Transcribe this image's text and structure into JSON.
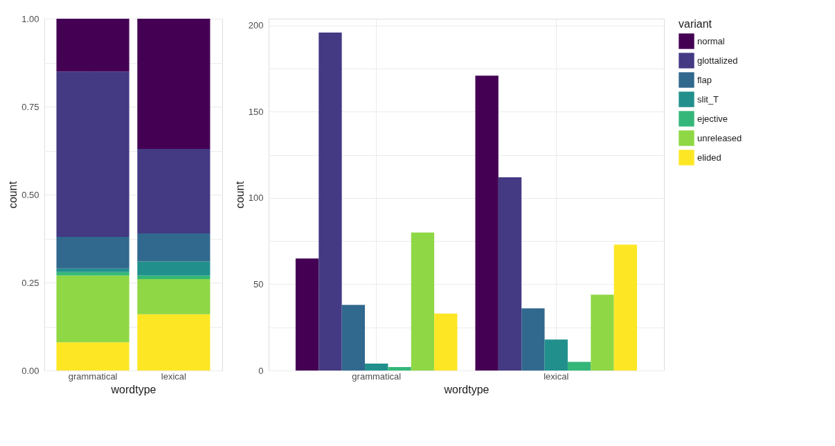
{
  "chart_data": [
    {
      "type": "bar",
      "stacked": true,
      "categories": [
        "grammatical",
        "lexical"
      ],
      "xlabel": "wordtype",
      "ylabel": "count",
      "ylim": [
        0,
        1
      ],
      "yticks": [
        {
          "value": 0,
          "label": "0.00"
        },
        {
          "value": 0.125,
          "label": null
        },
        {
          "value": 0.25,
          "label": "0.25"
        },
        {
          "value": 0.375,
          "label": null
        },
        {
          "value": 0.5,
          "label": "0.50"
        },
        {
          "value": 0.625,
          "label": null
        },
        {
          "value": 0.75,
          "label": "0.75"
        },
        {
          "value": 0.875,
          "label": null
        },
        {
          "value": 1,
          "label": "1.00"
        }
      ],
      "grid": true,
      "legend": "right",
      "series": [
        {
          "name": "elided",
          "color": "#fde725",
          "values": [
            0.08,
            0.16
          ]
        },
        {
          "name": "unreleased",
          "color": "#8fd744",
          "values": [
            0.19,
            0.1
          ]
        },
        {
          "name": "ejective",
          "color": "#35b779",
          "values": [
            0.01,
            0.01
          ]
        },
        {
          "name": "slit_T",
          "color": "#21908c",
          "values": [
            0.01,
            0.04
          ]
        },
        {
          "name": "flap",
          "color": "#31688e",
          "values": [
            0.09,
            0.08
          ]
        },
        {
          "name": "glottalized",
          "color": "#443983",
          "values": [
            0.47,
            0.24
          ]
        },
        {
          "name": "normal",
          "color": "#440154",
          "values": [
            0.15,
            0.37
          ]
        }
      ]
    },
    {
      "type": "bar",
      "categories": [
        "grammatical",
        "lexical"
      ],
      "xlabel": "wordtype",
      "ylabel": "count",
      "ylim": [
        0,
        204
      ],
      "yticks": [
        0,
        {
          "value": 25,
          "label": null
        },
        50,
        {
          "value": 75,
          "label": null
        },
        100,
        {
          "value": 125,
          "label": null
        },
        150,
        {
          "value": 175,
          "label": null
        },
        200
      ],
      "grid": true,
      "legend": "right",
      "legend_title": "variant",
      "series": [
        {
          "name": "normal",
          "color": "#440154",
          "values": [
            65,
            171
          ]
        },
        {
          "name": "glottalized",
          "color": "#443983",
          "values": [
            196,
            112
          ]
        },
        {
          "name": "flap",
          "color": "#31688e",
          "values": [
            38,
            36
          ]
        },
        {
          "name": "slit_T",
          "color": "#21908c",
          "values": [
            4,
            18
          ]
        },
        {
          "name": "ejective",
          "color": "#35b779",
          "values": [
            2,
            5
          ]
        },
        {
          "name": "unreleased",
          "color": "#8fd744",
          "values": [
            80,
            44
          ]
        },
        {
          "name": "elided",
          "color": "#fde725",
          "values": [
            33,
            73
          ]
        }
      ]
    }
  ]
}
